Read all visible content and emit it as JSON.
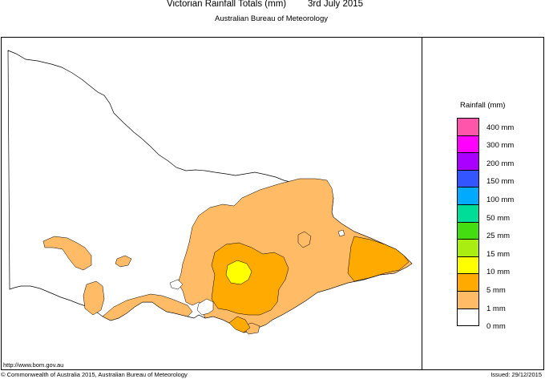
{
  "header": {
    "title": "Victorian Rainfall Totals (mm)",
    "date": "3rd July 2015",
    "subtitle": "Australian Bureau of Meteorology"
  },
  "legend": {
    "title": "Rainfall (mm)",
    "items": [
      {
        "label": "400 mm",
        "color": "#ff55aa"
      },
      {
        "label": "300 mm",
        "color": "#ff00ff"
      },
      {
        "label": "200 mm",
        "color": "#aa00ff"
      },
      {
        "label": "150 mm",
        "color": "#3355ff"
      },
      {
        "label": "100 mm",
        "color": "#00aaff"
      },
      {
        "label": "50 mm",
        "color": "#00dd99"
      },
      {
        "label": "25 mm",
        "color": "#44dd11"
      },
      {
        "label": "15 mm",
        "color": "#aaee11"
      },
      {
        "label": "10 mm",
        "color": "#ffff00"
      },
      {
        "label": "5 mm",
        "color": "#ffaa00"
      },
      {
        "label": "1 mm",
        "color": "#ffbb66"
      },
      {
        "label": "0 mm",
        "color": "#ffffff"
      }
    ]
  },
  "map": {
    "region": "Victoria",
    "outline_color": "#000000",
    "rain_1mm_color": "#ffbb66",
    "rain_5mm_color": "#ffaa00",
    "rain_10mm_color": "#ffff00"
  },
  "footer": {
    "url": "http://www.bom.gov.au",
    "copyright": "© Commonwealth of Australia 2015, Australian Bureau of Meteorology",
    "issued": "Issued: 29/12/2015"
  }
}
